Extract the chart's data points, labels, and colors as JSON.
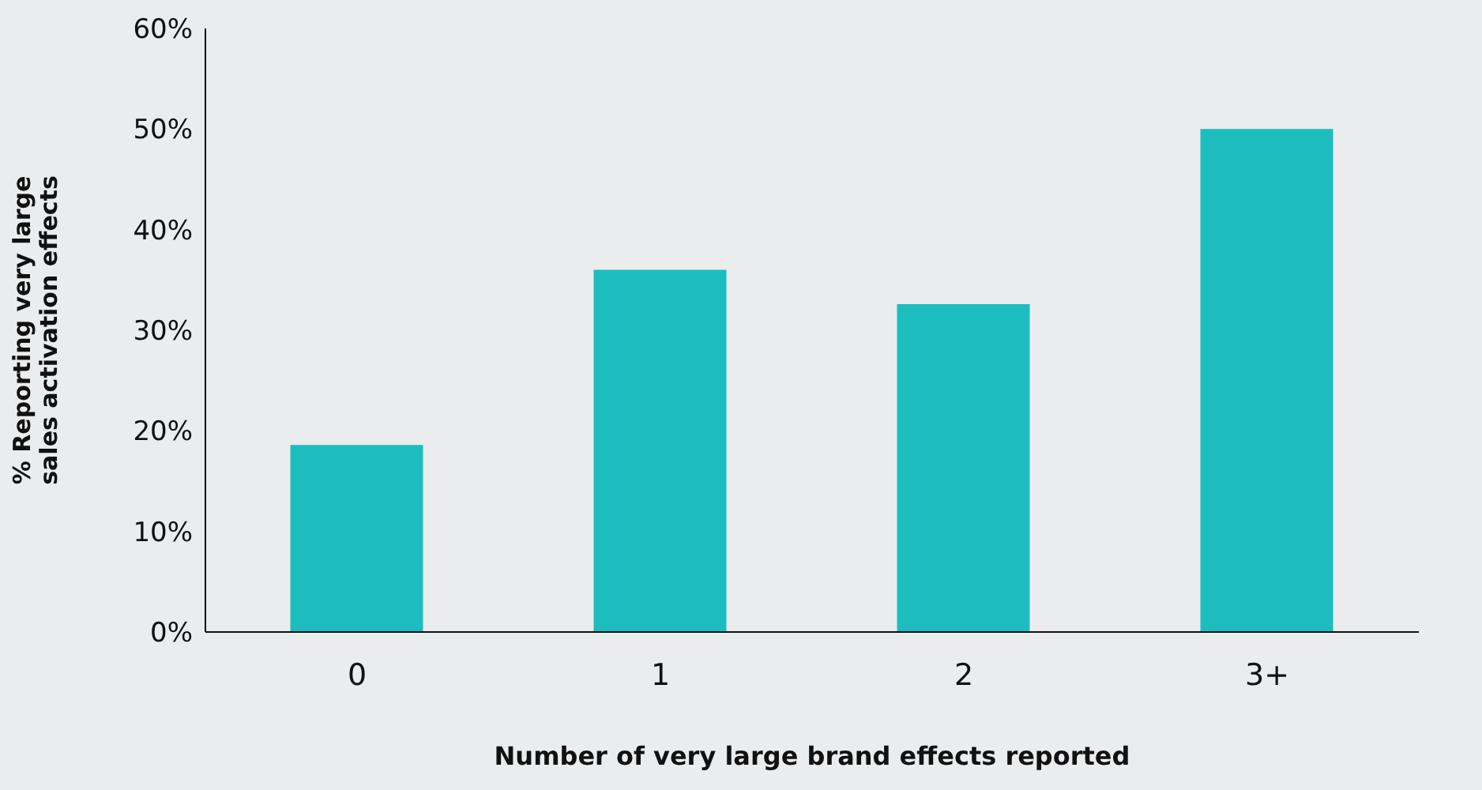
{
  "chart_data": {
    "type": "bar",
    "xlabel": "Number of very large brand effects reported",
    "ylabel": "% Reporting very large sales activation effects",
    "categories": [
      "0",
      "1",
      "2",
      "3+"
    ],
    "values": [
      18.6,
      36,
      32.6,
      50
    ],
    "color": "#1dbdbf",
    "ylim": [
      0,
      60
    ],
    "yticks": [
      {
        "value": 0,
        "label": "0%"
      },
      {
        "value": 10,
        "label": "10%"
      },
      {
        "value": 20,
        "label": "20%"
      },
      {
        "value": 30,
        "label": "30%"
      },
      {
        "value": 40,
        "label": "40%"
      },
      {
        "value": 50,
        "label": "50%"
      },
      {
        "value": 60,
        "label": "60%"
      }
    ],
    "grid": false,
    "legend": false
  }
}
